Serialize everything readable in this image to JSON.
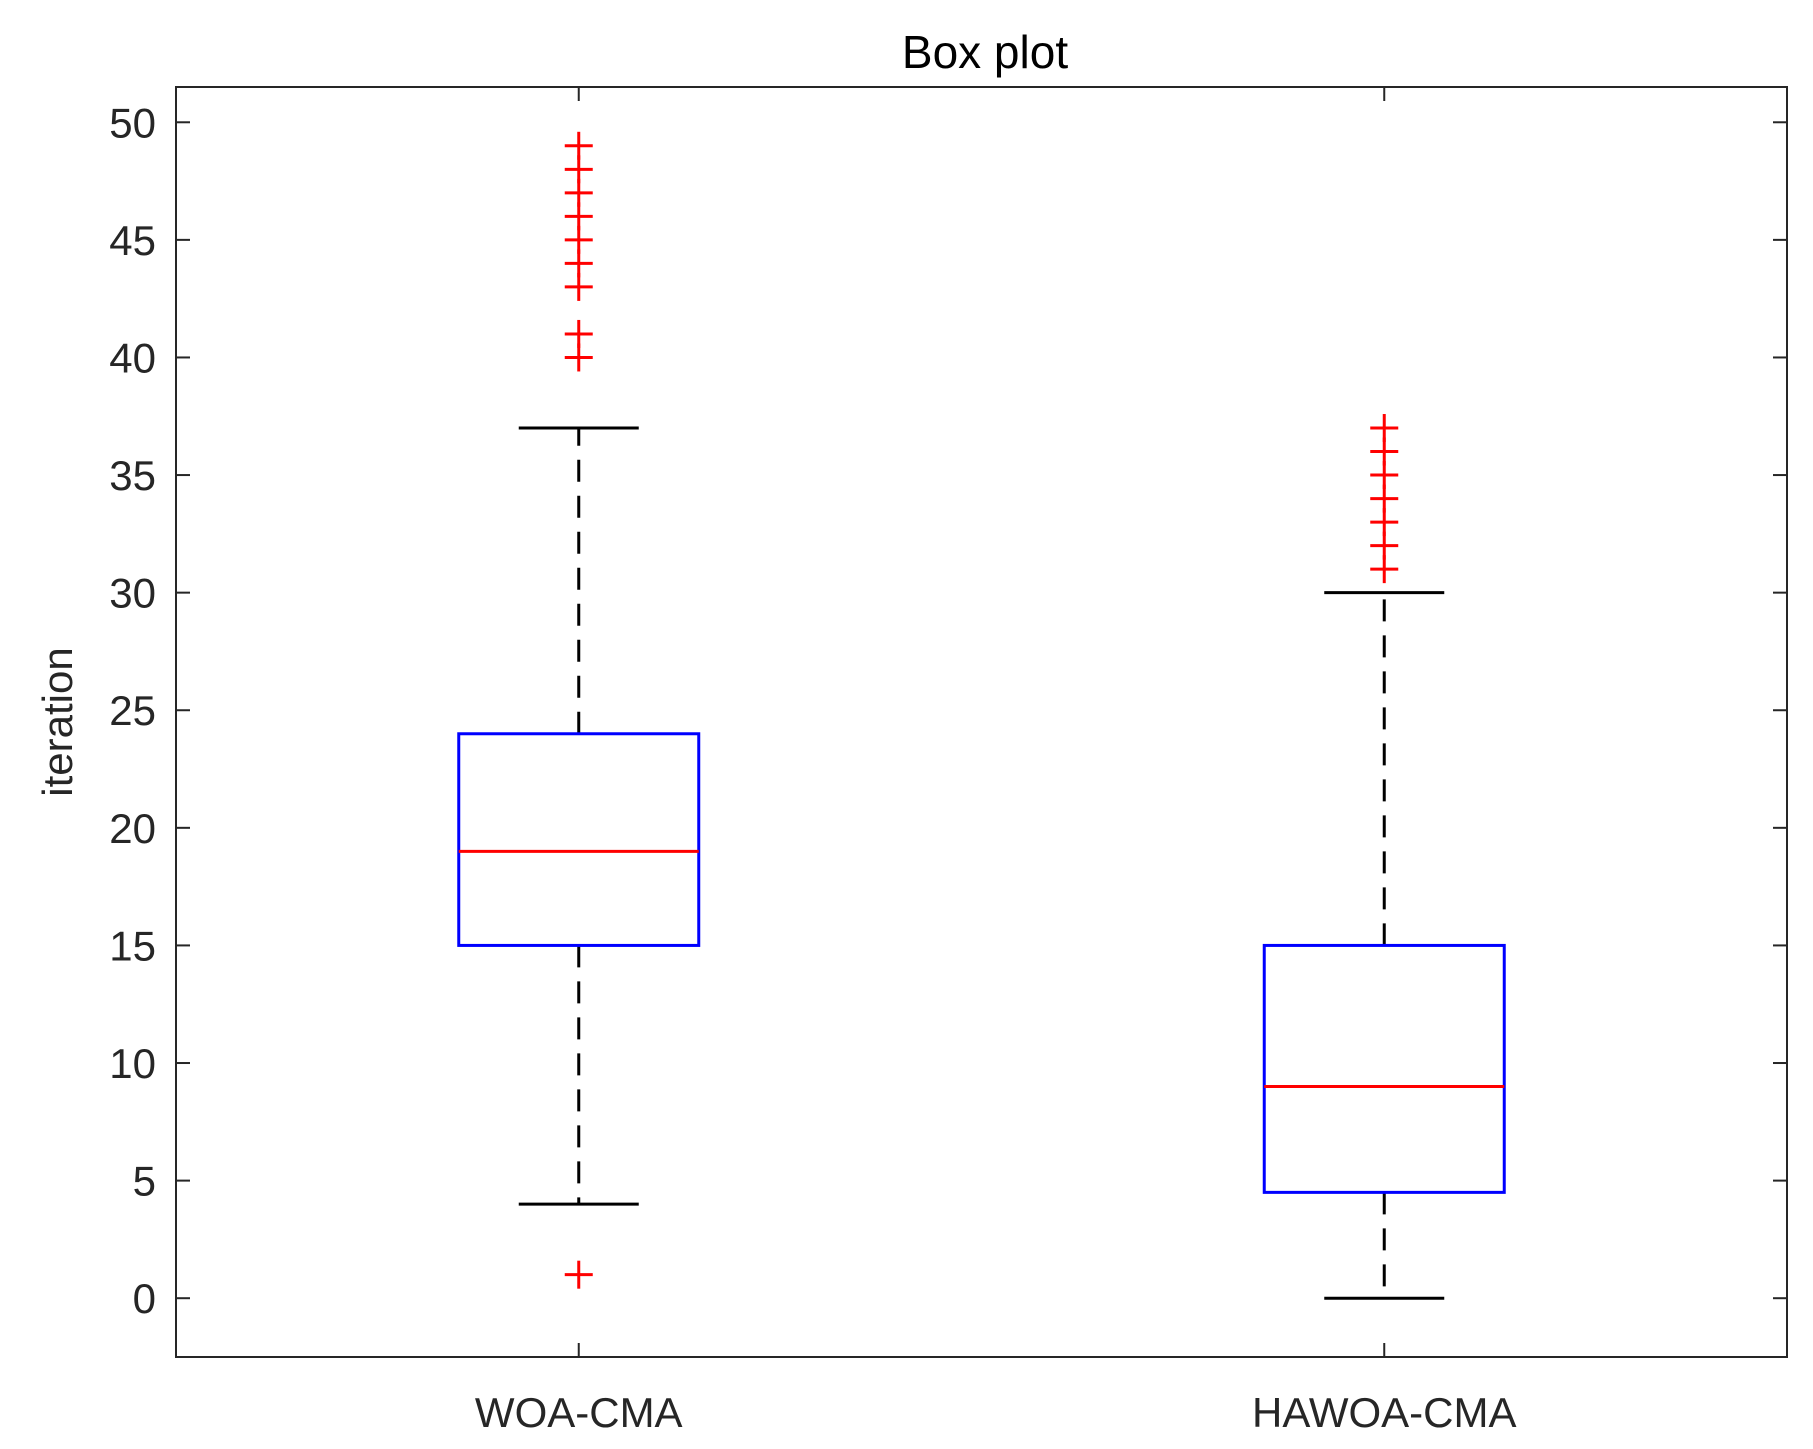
{
  "chart_data": {
    "type": "box",
    "title": "Box plot",
    "xlabel": "",
    "ylabel": "iteration",
    "ylim": [
      -2.5,
      51.5
    ],
    "yticks": [
      0,
      5,
      10,
      15,
      20,
      25,
      30,
      35,
      40,
      45,
      50
    ],
    "grid": false,
    "categories": [
      "WOA-CMA",
      "HAWOA-CMA"
    ],
    "boxes": [
      {
        "name": "WOA-CMA",
        "whisker_low": 4,
        "q1": 15,
        "median": 19,
        "q3": 24,
        "whisker_high": 37,
        "outliers": [
          1,
          40,
          41,
          43,
          44,
          45,
          46,
          47,
          48,
          49
        ]
      },
      {
        "name": "HAWOA-CMA",
        "whisker_low": 0,
        "q1": 4.5,
        "median": 9,
        "q3": 15,
        "whisker_high": 30,
        "outliers": [
          31,
          32,
          33,
          34,
          35,
          36,
          37
        ]
      }
    ],
    "colors": {
      "box": "#0000ff",
      "median": "#ff0000",
      "whisker": "#000000",
      "outlier": "#ff0000",
      "axis": "#262626"
    }
  }
}
